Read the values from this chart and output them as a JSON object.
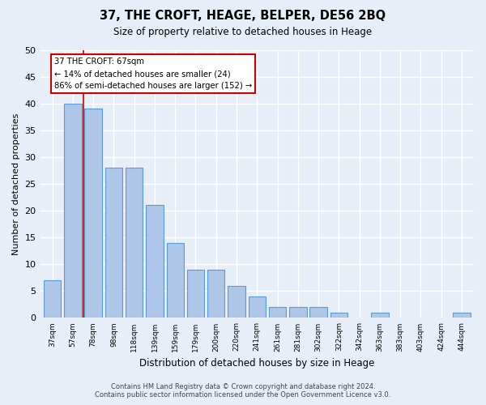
{
  "title1": "37, THE CROFT, HEAGE, BELPER, DE56 2BQ",
  "title2": "Size of property relative to detached houses in Heage",
  "xlabel": "Distribution of detached houses by size in Heage",
  "ylabel": "Number of detached properties",
  "bar_labels": [
    "37sqm",
    "57sqm",
    "78sqm",
    "98sqm",
    "118sqm",
    "139sqm",
    "159sqm",
    "179sqm",
    "200sqm",
    "220sqm",
    "241sqm",
    "261sqm",
    "281sqm",
    "302sqm",
    "322sqm",
    "342sqm",
    "363sqm",
    "383sqm",
    "403sqm",
    "424sqm",
    "444sqm"
  ],
  "bar_values": [
    7,
    40,
    39,
    28,
    28,
    21,
    14,
    9,
    9,
    6,
    4,
    2,
    2,
    2,
    1,
    0,
    1,
    0,
    0,
    0,
    1
  ],
  "bar_color": "#aec6e8",
  "bar_edge_color": "#5b9bd5",
  "annotation_text_line1": "37 THE CROFT: 67sqm",
  "annotation_text_line2": "← 14% of detached houses are smaller (24)",
  "annotation_text_line3": "86% of semi-detached houses are larger (152) →",
  "annotation_box_color": "#ffffff",
  "annotation_box_edge": "#cc0000",
  "vline_color": "#cc0000",
  "vline_x": 1.5,
  "ylim": [
    0,
    50
  ],
  "yticks": [
    0,
    5,
    10,
    15,
    20,
    25,
    30,
    35,
    40,
    45,
    50
  ],
  "footer1": "Contains HM Land Registry data © Crown copyright and database right 2024.",
  "footer2": "Contains public sector information licensed under the Open Government Licence v3.0.",
  "bg_color": "#e8eef8",
  "grid_color": "#ffffff",
  "bar_width": 0.85
}
